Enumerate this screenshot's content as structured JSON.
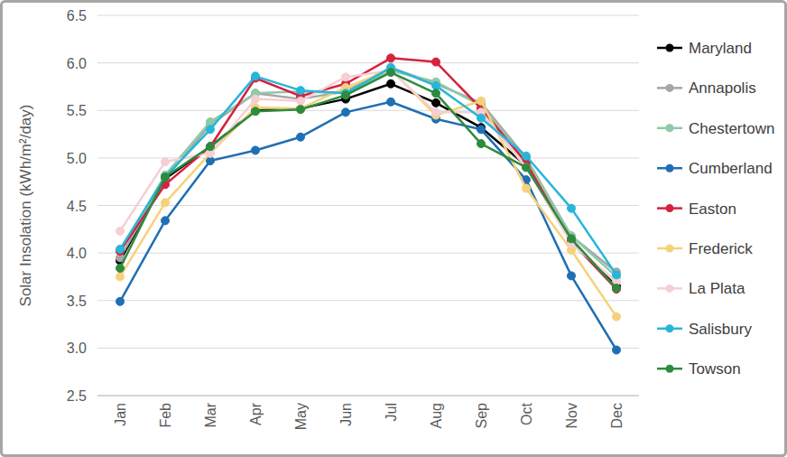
{
  "chart_data": {
    "type": "line",
    "y_label": "Solar Insolation (kWh/m²/day)",
    "categories": [
      "Jan",
      "Feb",
      "Mar",
      "Apr",
      "May",
      "Jun",
      "Jul",
      "Aug",
      "Sep",
      "Oct",
      "Nov",
      "Dec"
    ],
    "ylim": [
      2.5,
      6.5
    ],
    "yticks": [
      2.5,
      {
        "value": 3,
        "label": "3.0"
      },
      3.5,
      {
        "value": 4,
        "label": "4.0"
      },
      4.5,
      {
        "value": 5,
        "label": "5.0"
      },
      5.5,
      {
        "value": 6,
        "label": "6.0"
      },
      6.5
    ],
    "grid": true,
    "legend": "right",
    "marker": "circle",
    "series": [
      {
        "name": "Maryland",
        "color": "#000000",
        "values": [
          3.92,
          4.78,
          5.12,
          5.5,
          5.52,
          5.62,
          5.78,
          5.58,
          5.32,
          4.92,
          4.12,
          3.65
        ]
      },
      {
        "name": "Annapolis",
        "color": "#a6a6a6",
        "values": [
          3.95,
          4.78,
          5.35,
          5.68,
          5.62,
          5.7,
          5.95,
          5.78,
          5.58,
          5.0,
          4.18,
          3.8
        ]
      },
      {
        "name": "Chestertown",
        "color": "#8fc9a7",
        "values": [
          4.02,
          4.82,
          5.38,
          5.68,
          5.7,
          5.68,
          5.92,
          5.8,
          5.55,
          4.98,
          4.18,
          3.75
        ]
      },
      {
        "name": "Cumberland",
        "color": "#1f6fb4",
        "values": [
          3.49,
          4.34,
          4.97,
          5.08,
          5.22,
          5.48,
          5.59,
          5.41,
          5.3,
          4.77,
          3.76,
          2.98
        ]
      },
      {
        "name": "Easton",
        "color": "#d6213f",
        "values": [
          4.02,
          4.72,
          5.12,
          5.84,
          5.65,
          5.78,
          6.05,
          6.01,
          5.52,
          4.95,
          4.12,
          3.62
        ]
      },
      {
        "name": "Frederick",
        "color": "#f5d27a",
        "values": [
          3.75,
          4.53,
          5.05,
          5.53,
          5.52,
          5.74,
          5.93,
          5.45,
          5.6,
          4.68,
          4.03,
          3.33
        ]
      },
      {
        "name": "La Plata",
        "color": "#f5cfd4",
        "values": [
          4.23,
          4.96,
          5.05,
          5.62,
          5.6,
          5.85,
          5.92,
          5.48,
          5.48,
          4.9,
          4.1,
          3.7
        ]
      },
      {
        "name": "Salisbury",
        "color": "#27b6d9",
        "values": [
          4.04,
          4.8,
          5.3,
          5.86,
          5.71,
          5.68,
          5.95,
          5.76,
          5.42,
          5.02,
          4.47,
          3.77
        ]
      },
      {
        "name": "Towson",
        "color": "#2e8b3e",
        "values": [
          3.84,
          4.8,
          5.12,
          5.49,
          5.51,
          5.66,
          5.9,
          5.68,
          5.15,
          4.9,
          4.15,
          3.63
        ]
      }
    ]
  }
}
